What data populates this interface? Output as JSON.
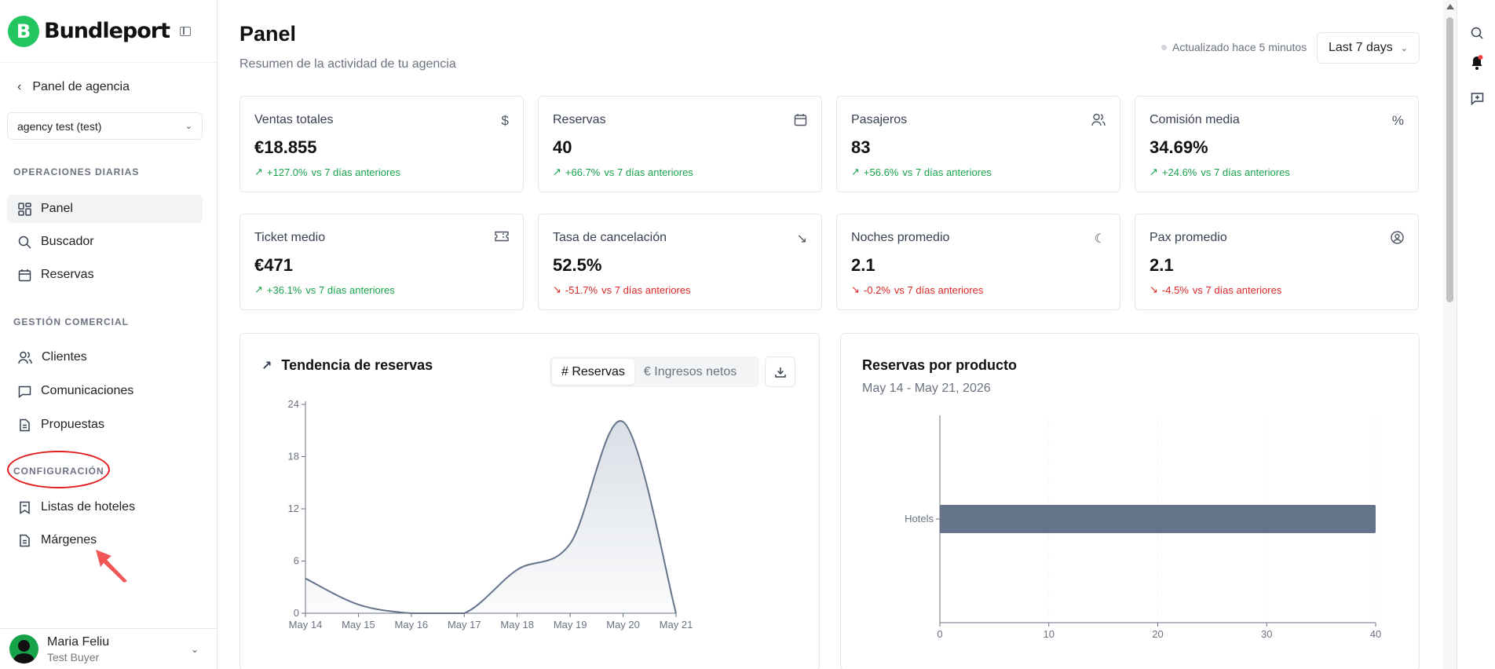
{
  "brand": {
    "name": "Bundleport"
  },
  "sidebar": {
    "back_label": "Panel de agencia",
    "agency_select": "agency test (test)",
    "sections": [
      {
        "title": "OPERACIONES DIARIAS",
        "items": [
          "Panel",
          "Buscador",
          "Reservas"
        ]
      },
      {
        "title": "GESTIÓN COMERCIAL",
        "items": [
          "Clientes",
          "Comunicaciones",
          "Propuestas"
        ]
      },
      {
        "title": "CONFIGURACIÓN",
        "items": [
          "Listas de hoteles",
          "Márgenes"
        ]
      }
    ],
    "active_item": "Panel",
    "user": {
      "name": "Maria Feliu",
      "role": "Test Buyer"
    }
  },
  "header": {
    "title": "Panel",
    "subtitle": "Resumen de la actividad de tu agencia",
    "updated": "Actualizado hace 5 minutos",
    "range": "Last 7 days"
  },
  "kpis": [
    {
      "label": "Ventas totales",
      "value": "€18.855",
      "change": "+127.0%",
      "suffix": "vs 7 días anteriores",
      "trend": "up",
      "icon": "dollar-icon"
    },
    {
      "label": "Reservas",
      "value": "40",
      "change": "+66.7%",
      "suffix": "vs 7 días anteriores",
      "trend": "up",
      "icon": "calendar-icon"
    },
    {
      "label": "Pasajeros",
      "value": "83",
      "change": "+56.6%",
      "suffix": "vs 7 días anteriores",
      "trend": "up",
      "icon": "users-icon"
    },
    {
      "label": "Comisión media",
      "value": "34.69%",
      "change": "+24.6%",
      "suffix": "vs 7 días anteriores",
      "trend": "up",
      "icon": "percent-icon"
    },
    {
      "label": "Ticket medio",
      "value": "€471",
      "change": "+36.1%",
      "suffix": "vs 7 días anteriores",
      "trend": "up",
      "icon": "ticket-icon"
    },
    {
      "label": "Tasa de cancelación",
      "value": "52.5%",
      "change": "-51.7%",
      "suffix": "vs 7 días anteriores",
      "trend": "down",
      "icon": "trending-down-icon"
    },
    {
      "label": "Noches promedio",
      "value": "2.1",
      "change": "-0.2%",
      "suffix": "vs 7 días anteriores",
      "trend": "down",
      "icon": "moon-icon"
    },
    {
      "label": "Pax promedio",
      "value": "2.1",
      "change": "-4.5%",
      "suffix": "vs 7 días anteriores",
      "trend": "down",
      "icon": "user-circle-icon"
    }
  ],
  "trend_panel": {
    "title": "Tendencia de reservas",
    "toggle": [
      "# Reservas",
      "€ Ingresos netos"
    ],
    "selected": "# Reservas"
  },
  "product_panel": {
    "title": "Reservas por producto",
    "date_range": "May 14 - May 21, 2026"
  },
  "colors": {
    "accent": "#22c55e",
    "up": "#16a34a",
    "down": "#dc2626",
    "series": "#64748b",
    "annotation": "#e11d1d"
  },
  "chart_data": [
    {
      "type": "area",
      "title": "Tendencia de reservas",
      "x": [
        "May 14",
        "May 15",
        "May 16",
        "May 17",
        "May 18",
        "May 19",
        "May 20",
        "May 21"
      ],
      "series": [
        {
          "values": [
            4,
            1,
            0,
            0,
            5,
            8,
            22,
            0
          ]
        }
      ],
      "ylim": [
        0,
        24
      ],
      "yticks": [
        0,
        6,
        12,
        18,
        24
      ]
    },
    {
      "type": "bar",
      "orientation": "horizontal",
      "title": "Reservas por producto",
      "categories": [
        "Hotels"
      ],
      "values": [
        40
      ],
      "xlim": [
        0,
        40
      ],
      "xticks": [
        0,
        10,
        20,
        30,
        40
      ]
    }
  ]
}
